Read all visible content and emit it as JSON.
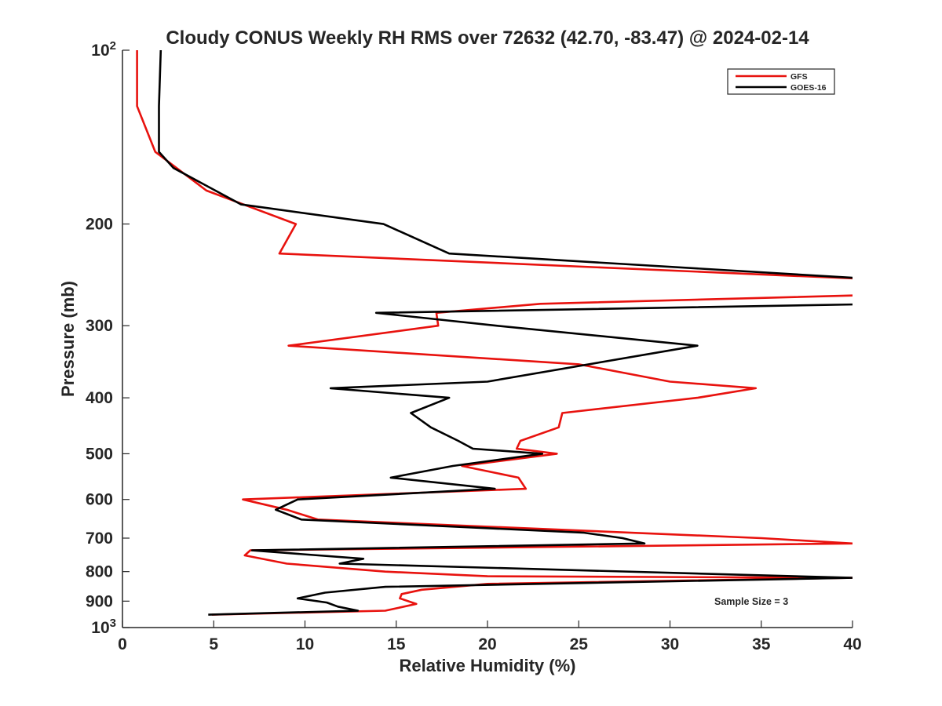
{
  "chart_data": {
    "type": "line",
    "title": "Cloudy CONUS Weekly RH RMS over 72632 (42.70, -83.47) @ 2024-02-14",
    "xlabel": "Relative Humidity (%)",
    "ylabel": "Pressure (mb)",
    "xlim": [
      0,
      40
    ],
    "ylim": [
      1000,
      100
    ],
    "y_scale": "log",
    "grid": false,
    "legend_position": "top-right",
    "x_ticks": [
      "0",
      "5",
      "10",
      "15",
      "20",
      "25",
      "30",
      "35",
      "40"
    ],
    "y_ticks": [
      {
        "value": 100,
        "base": "10",
        "exp": "2"
      },
      {
        "value": 200,
        "label": "200"
      },
      {
        "value": 300,
        "label": "300"
      },
      {
        "value": 400,
        "label": "400"
      },
      {
        "value": 500,
        "label": "500"
      },
      {
        "value": 600,
        "label": "600"
      },
      {
        "value": 700,
        "label": "700"
      },
      {
        "value": 800,
        "label": "800"
      },
      {
        "value": 900,
        "label": "900"
      },
      {
        "value": 1000,
        "base": "10",
        "exp": "3"
      }
    ],
    "annotation": "Sample Size = 3",
    "series": [
      {
        "name": "GFS",
        "color": "#e8120e",
        "points": [
          [
            0.8,
            100
          ],
          [
            0.8,
            125
          ],
          [
            1.8,
            150
          ],
          [
            4.6,
            175
          ],
          [
            9.5,
            200
          ],
          [
            8.6,
            225
          ],
          [
            42,
            250
          ],
          [
            42,
            265
          ],
          [
            22.9,
            275
          ],
          [
            17.2,
            285
          ],
          [
            17.3,
            300
          ],
          [
            9.1,
            325
          ],
          [
            25,
            350
          ],
          [
            30,
            375
          ],
          [
            34.7,
            385
          ],
          [
            31.5,
            400
          ],
          [
            24.1,
            425
          ],
          [
            23.9,
            450
          ],
          [
            21.8,
            475
          ],
          [
            21.6,
            490
          ],
          [
            23.8,
            500
          ],
          [
            18.6,
            525
          ],
          [
            21.7,
            550
          ],
          [
            22.1,
            575
          ],
          [
            6.6,
            600
          ],
          [
            9,
            625
          ],
          [
            10.7,
            650
          ],
          [
            35,
            700
          ],
          [
            40,
            715
          ],
          [
            7,
            735
          ],
          [
            6.7,
            750
          ],
          [
            9,
            775
          ],
          [
            14.4,
            800
          ],
          [
            20,
            815
          ],
          [
            40,
            820
          ],
          [
            20,
            840
          ],
          [
            16.4,
            860
          ],
          [
            15.3,
            875
          ],
          [
            15.2,
            890
          ],
          [
            16.1,
            910
          ],
          [
            14.4,
            935
          ],
          [
            4.9,
            950
          ]
        ]
      },
      {
        "name": "GOES-16",
        "color": "#000000",
        "points": [
          [
            2.1,
            100
          ],
          [
            2,
            125
          ],
          [
            2,
            150
          ],
          [
            2.8,
            160
          ],
          [
            6.5,
            185
          ],
          [
            14.3,
            200
          ],
          [
            17.9,
            225
          ],
          [
            42,
            250
          ],
          [
            42,
            275
          ],
          [
            13.9,
            285
          ],
          [
            20.5,
            300
          ],
          [
            31.5,
            325
          ],
          [
            20,
            375
          ],
          [
            11.4,
            385
          ],
          [
            17.9,
            400
          ],
          [
            15.8,
            425
          ],
          [
            16.9,
            450
          ],
          [
            18.4,
            475
          ],
          [
            19.2,
            490
          ],
          [
            23,
            500
          ],
          [
            18.1,
            525
          ],
          [
            14.7,
            550
          ],
          [
            20.4,
            575
          ],
          [
            9.6,
            600
          ],
          [
            8.4,
            625
          ],
          [
            9.8,
            650
          ],
          [
            25.3,
            685
          ],
          [
            27.4,
            700
          ],
          [
            28.6,
            715
          ],
          [
            7.1,
            735
          ],
          [
            13.2,
            760
          ],
          [
            11.9,
            775
          ],
          [
            40,
            820
          ],
          [
            14.4,
            850
          ],
          [
            11.1,
            870
          ],
          [
            9.6,
            890
          ],
          [
            11.2,
            905
          ],
          [
            11.8,
            920
          ],
          [
            12.9,
            935
          ],
          [
            4.7,
            950
          ]
        ]
      }
    ]
  }
}
